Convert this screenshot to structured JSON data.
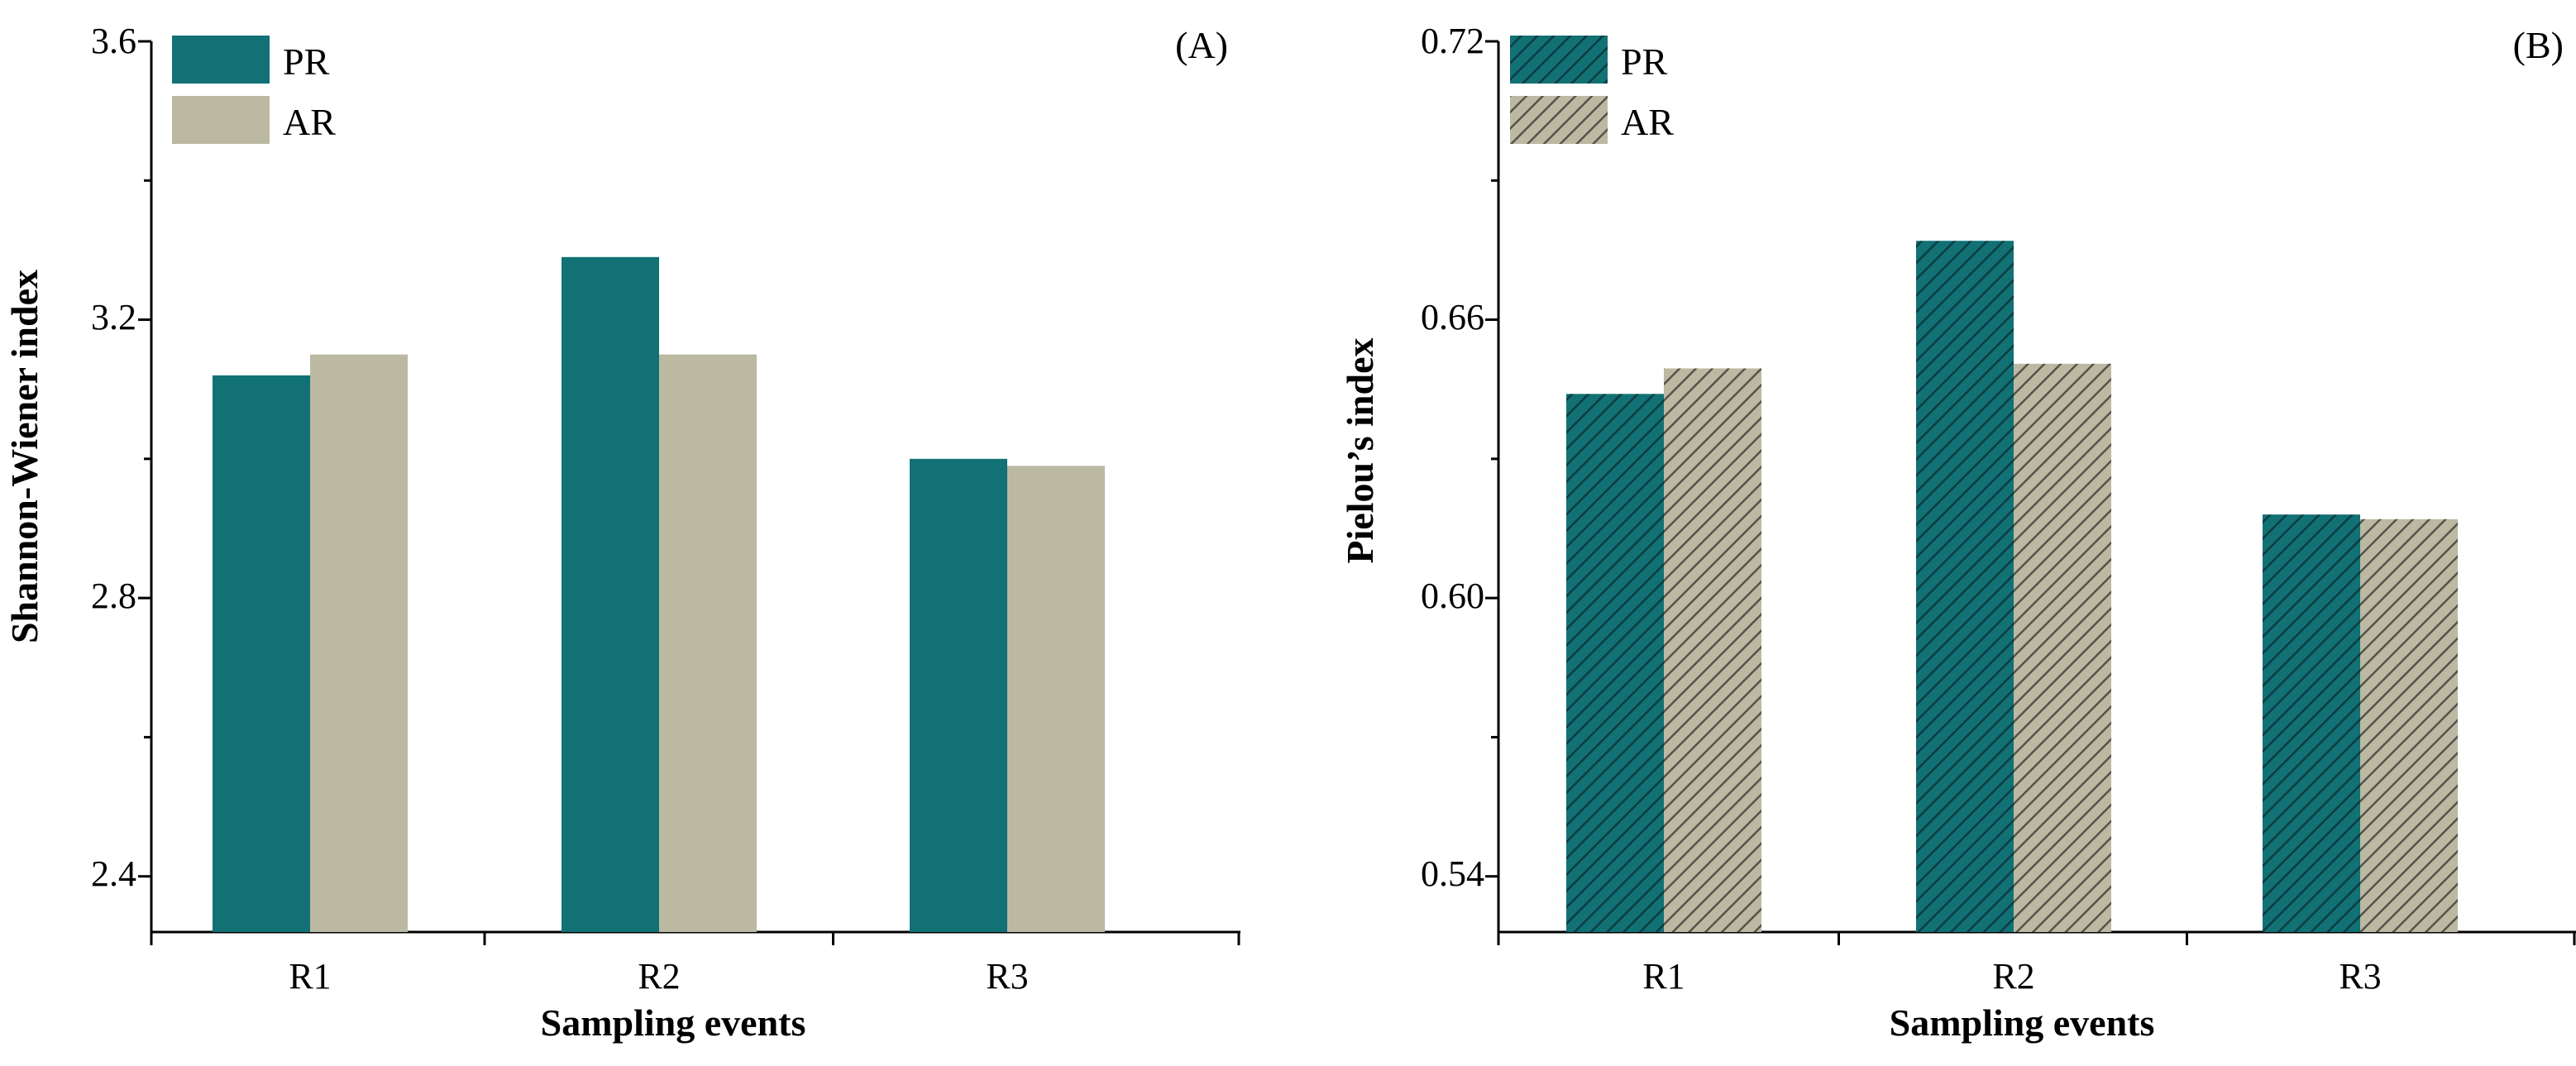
{
  "colors": {
    "pr": "#117175",
    "ar": "#bcb9a3",
    "axis": "#000000",
    "hatch_dark": "#0b3d40",
    "hatch_light": "#55534a"
  },
  "chart_data": [
    {
      "type": "bar",
      "panel": "(A)",
      "categories": [
        "R1",
        "R2",
        "R3"
      ],
      "series": [
        {
          "name": "PR",
          "values": [
            3.12,
            3.29,
            3.0
          ]
        },
        {
          "name": "AR",
          "values": [
            3.15,
            3.15,
            2.99
          ]
        }
      ],
      "xlabel": "Sampling events",
      "ylabel": "Shannon-Wiener index",
      "ylim": [
        2.32,
        3.6
      ],
      "yticks": [
        2.4,
        2.8,
        3.2,
        3.6
      ],
      "ytick_labels": [
        "2.4",
        "2.8",
        "3.2",
        "3.6"
      ],
      "legend_position": "top-left",
      "hatched": false
    },
    {
      "type": "bar",
      "panel": "(B)",
      "categories": [
        "R1",
        "R2",
        "R3"
      ],
      "series": [
        {
          "name": "PR",
          "values": [
            0.644,
            0.677,
            0.618
          ]
        },
        {
          "name": "AR",
          "values": [
            0.6495,
            0.6505,
            0.617
          ]
        }
      ],
      "xlabel": "Sampling events",
      "ylabel": "Pielou’s index",
      "ylim": [
        0.528,
        0.72
      ],
      "yticks": [
        0.54,
        0.6,
        0.66,
        0.72
      ],
      "ytick_labels": [
        "0.54",
        "0.60",
        "0.66",
        "0.72"
      ],
      "legend_position": "top-left",
      "hatched": true
    }
  ]
}
